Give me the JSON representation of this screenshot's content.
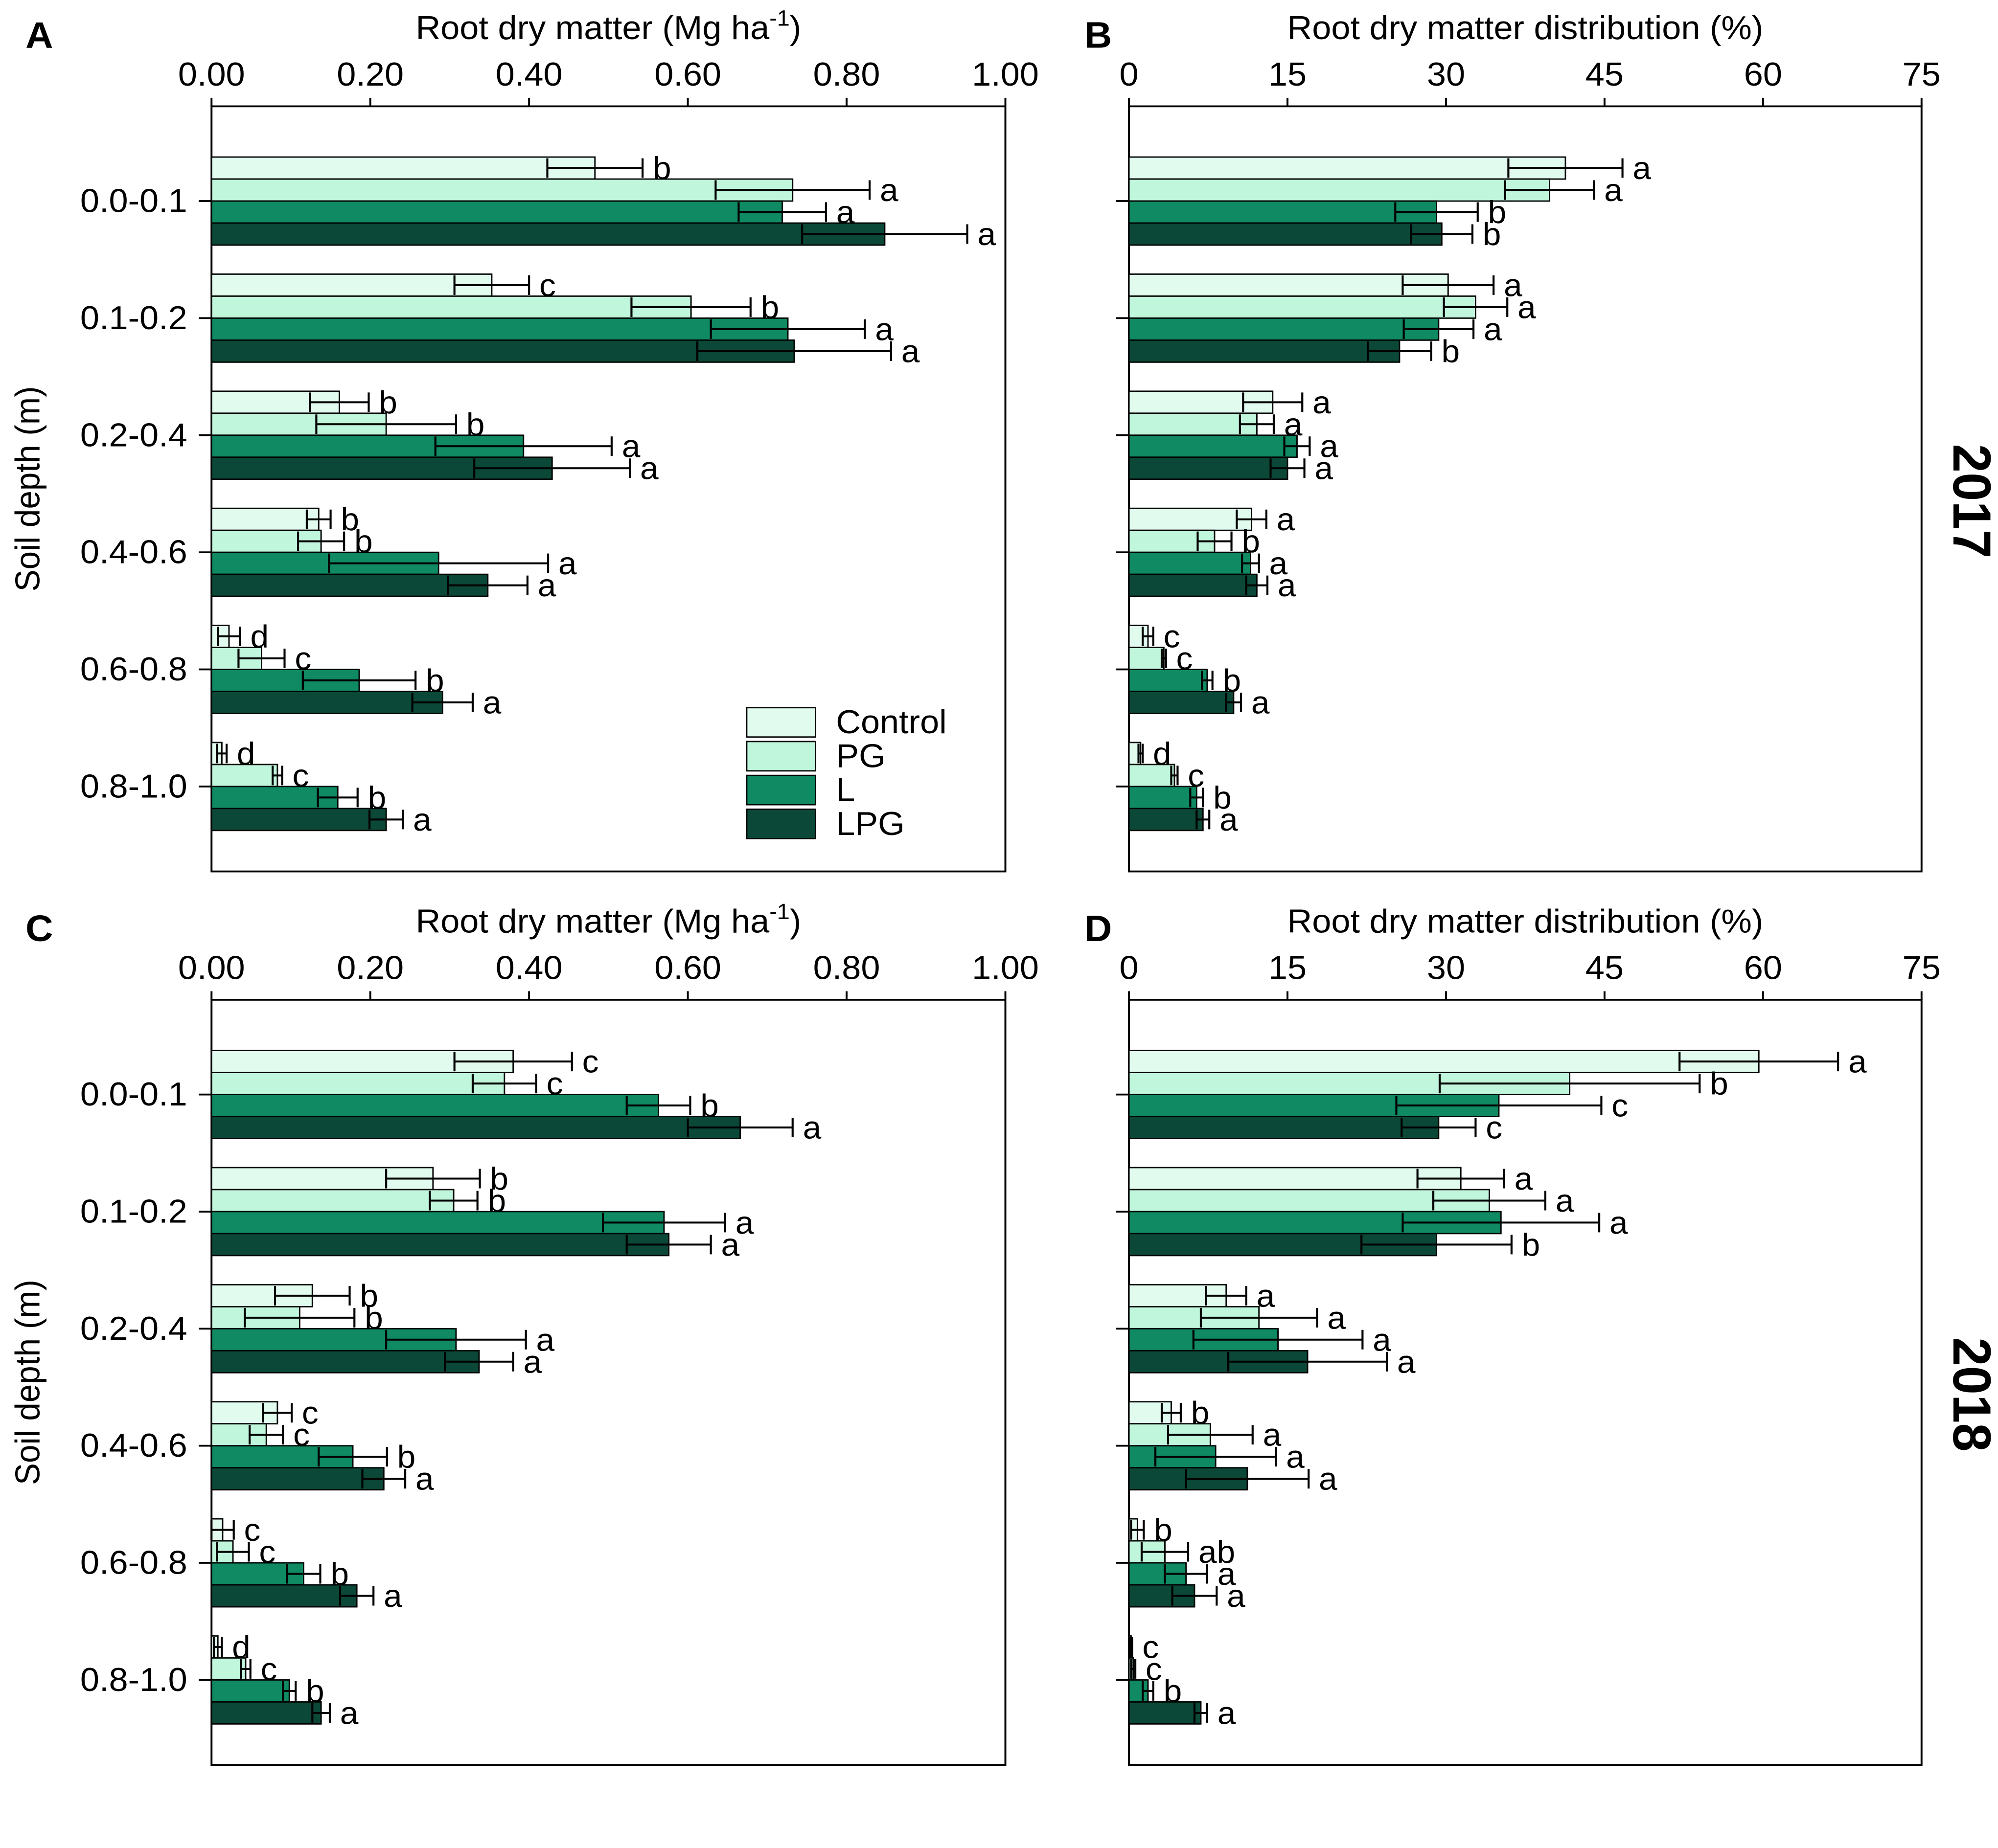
{
  "chart_data": {
    "type": "bar",
    "ylabel": "Soil depth (m)",
    "categories": [
      "0.0-0.1",
      "0.1-0.2",
      "0.2-0.4",
      "0.4-0.6",
      "0.6-0.8",
      "0.8-1.0"
    ],
    "series": [
      {
        "name": "Control",
        "color": "#e2fbef"
      },
      {
        "name": "PG",
        "color": "#c0f6dc"
      },
      {
        "name": "L",
        "color": "#0f8a63"
      },
      {
        "name": "LPG",
        "color": "#0b4837"
      }
    ],
    "years": [
      "2017",
      "2018"
    ],
    "grid": false,
    "panels": [
      {
        "label": "A",
        "year_index": 0,
        "xlabel": {
          "text": "Root dry matter (Mg ha",
          "sup": "-1",
          "text_end": ")"
        },
        "xlim": [
          0,
          1.0
        ],
        "xticks": [
          "0.00",
          "0.20",
          "0.40",
          "0.60",
          "0.80",
          "1.00"
        ],
        "values": [
          [
            0.483,
            0.353,
            0.161,
            0.135,
            0.022,
            0.013
          ],
          [
            0.732,
            0.604,
            0.22,
            0.138,
            0.063,
            0.083
          ],
          [
            0.719,
            0.726,
            0.393,
            0.286,
            0.186,
            0.159
          ],
          [
            0.848,
            0.734,
            0.429,
            0.348,
            0.291,
            0.22
          ]
        ],
        "errors": [
          [
            0.06,
            0.047,
            0.037,
            0.015,
            0.014,
            0.006
          ],
          [
            0.097,
            0.075,
            0.088,
            0.029,
            0.029,
            0.006
          ],
          [
            0.055,
            0.097,
            0.111,
            0.138,
            0.071,
            0.025
          ],
          [
            0.104,
            0.122,
            0.098,
            0.05,
            0.038,
            0.021
          ]
        ],
        "letters": [
          [
            "b",
            "c",
            "b",
            "b",
            "d",
            "d"
          ],
          [
            "a",
            "b",
            "b",
            "b",
            "c",
            "c"
          ],
          [
            "a",
            "a",
            "a",
            "a",
            "b",
            "b"
          ],
          [
            "a",
            "a",
            "a",
            "a",
            "a",
            "a"
          ]
        ]
      },
      {
        "label": "B",
        "year_index": 0,
        "xlabel": {
          "text": "Root dry matter distribution (%)"
        },
        "xlim": [
          0,
          75
        ],
        "xticks": [
          "0",
          "15",
          "30",
          "45",
          "60",
          "75"
        ],
        "values": [
          [
            41.3,
            30.2,
            13.6,
            11.6,
            1.8,
            1.1
          ],
          [
            39.8,
            32.8,
            12.1,
            8.1,
            3.3,
            4.3
          ],
          [
            29.1,
            29.3,
            15.9,
            11.5,
            7.4,
            6.4
          ],
          [
            29.6,
            25.6,
            15.0,
            12.1,
            9.9,
            7.0
          ]
        ],
        "errors": [
          [
            5.4,
            4.3,
            2.8,
            1.4,
            0.5,
            0.2
          ],
          [
            4.2,
            3.0,
            1.6,
            1.6,
            0.2,
            0.3
          ],
          [
            3.9,
            3.3,
            1.2,
            0.8,
            0.5,
            0.6
          ],
          [
            2.9,
            3.0,
            1.6,
            1.0,
            0.7,
            0.6
          ]
        ],
        "letters": [
          [
            "a",
            "a",
            "a",
            "a",
            "c",
            "d"
          ],
          [
            "a",
            "a",
            "a",
            "b",
            "c",
            "c"
          ],
          [
            "b",
            "a",
            "a",
            "a",
            "b",
            "b"
          ],
          [
            "b",
            "b",
            "a",
            "a",
            "a",
            "a"
          ]
        ]
      },
      {
        "label": "C",
        "year_index": 1,
        "xlabel": {
          "text": "Root dry matter (Mg ha",
          "sup": "-1",
          "text_end": ")"
        },
        "xlim": [
          0,
          1.0
        ],
        "xticks": [
          "0.00",
          "0.20",
          "0.40",
          "0.60",
          "0.80",
          "1.00"
        ],
        "values": [
          [
            0.38,
            0.279,
            0.127,
            0.083,
            0.014,
            0.008
          ],
          [
            0.369,
            0.305,
            0.111,
            0.069,
            0.027,
            0.043
          ],
          [
            0.563,
            0.57,
            0.308,
            0.178,
            0.116,
            0.098
          ],
          [
            0.666,
            0.576,
            0.337,
            0.217,
            0.183,
            0.138
          ]
        ],
        "errors": [
          [
            0.074,
            0.059,
            0.047,
            0.018,
            0.014,
            0.005
          ],
          [
            0.04,
            0.03,
            0.069,
            0.021,
            0.02,
            0.006
          ],
          [
            0.04,
            0.077,
            0.088,
            0.043,
            0.021,
            0.008
          ],
          [
            0.066,
            0.053,
            0.043,
            0.027,
            0.021,
            0.011
          ]
        ],
        "letters": [
          [
            "c",
            "b",
            "b",
            "c",
            "c",
            "d"
          ],
          [
            "c",
            "b",
            "b",
            "c",
            "c",
            "c"
          ],
          [
            "b",
            "a",
            "a",
            "b",
            "b",
            "b"
          ],
          [
            "a",
            "a",
            "a",
            "a",
            "a",
            "a"
          ]
        ]
      },
      {
        "label": "D",
        "year_index": 1,
        "xlabel": {
          "text": "Root dry matter distribution (%)"
        },
        "xlim": [
          0,
          75
        ],
        "xticks": [
          "0",
          "15",
          "30",
          "45",
          "60",
          "75"
        ],
        "values": [
          [
            59.6,
            31.4,
            9.2,
            4.0,
            0.8,
            0.2
          ],
          [
            41.7,
            34.1,
            12.3,
            7.7,
            3.4,
            0.4
          ],
          [
            35.0,
            35.2,
            14.1,
            8.2,
            5.4,
            1.8
          ],
          [
            29.3,
            29.1,
            16.9,
            11.2,
            6.2,
            6.8
          ]
        ],
        "errors": [
          [
            7.5,
            4.1,
            1.9,
            0.9,
            0.6,
            0.1
          ],
          [
            12.3,
            5.3,
            5.5,
            4.0,
            2.2,
            0.2
          ],
          [
            9.7,
            9.3,
            8.0,
            5.7,
            2.0,
            0.5
          ],
          [
            3.5,
            7.1,
            7.5,
            5.8,
            2.1,
            0.6
          ]
        ],
        "letters": [
          [
            "a",
            "a",
            "a",
            "b",
            "b",
            "c"
          ],
          [
            "b",
            "a",
            "a",
            "a",
            "ab",
            "c"
          ],
          [
            "c",
            "a",
            "a",
            "a",
            "a",
            "b"
          ],
          [
            "c",
            "b",
            "a",
            "a",
            "a",
            "a"
          ]
        ]
      }
    ]
  }
}
